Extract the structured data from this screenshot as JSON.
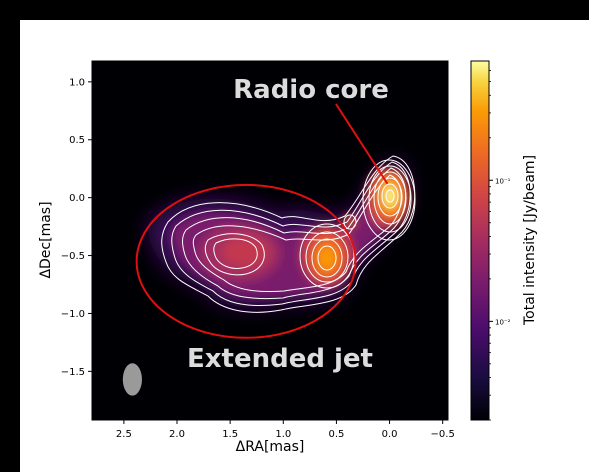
{
  "chart_data": {
    "type": "heatmap",
    "xlabel": "ΔRA[mas]",
    "ylabel": "ΔDec[mas]",
    "xlim": [
      2.8,
      -0.55
    ],
    "ylim": [
      -1.92,
      1.18
    ],
    "xticks": [
      2.5,
      2.0,
      1.5,
      1.0,
      0.5,
      0.0,
      -0.5
    ],
    "xtick_labels": [
      "2.5",
      "2.0",
      "1.5",
      "1.0",
      "0.5",
      "0.0",
      "−0.5"
    ],
    "yticks": [
      1.0,
      0.5,
      0.0,
      -0.5,
      -1.0,
      -1.5
    ],
    "ytick_labels": [
      "1.0",
      "0.5",
      "0.0",
      "−0.5",
      "−1.0",
      "−1.5"
    ],
    "colorbar": {
      "label": "Total intensity [Jy/beam]",
      "scale": "log",
      "range": [
        0.002,
        0.7
      ],
      "ticks": [
        0.1,
        0.01
      ],
      "tick_labels": [
        "10⁻¹",
        "10⁻²"
      ],
      "colormap": "inferno"
    },
    "components": [
      {
        "name": "core",
        "x": 0.0,
        "y": 0.0,
        "peak": 0.6
      },
      {
        "name": "knot",
        "x": 0.6,
        "y": -0.52,
        "peak": 0.18
      },
      {
        "name": "knot_small",
        "x": 0.38,
        "y": -0.22,
        "peak": 0.05
      },
      {
        "name": "jet_blob",
        "x": 1.35,
        "y": -0.5,
        "peak": 0.03
      }
    ],
    "annotations": [
      {
        "text": "Radio core",
        "points_to": {
          "x": 0.02,
          "y": 0.12
        }
      },
      {
        "text": "Extended jet"
      }
    ],
    "ellipse": {
      "cx": 1.35,
      "cy": -0.55,
      "rx": 1.03,
      "ry": 0.66,
      "color": "#e01010"
    },
    "beam": {
      "x": 2.42,
      "y": -1.57,
      "major": 0.28,
      "minor": 0.18,
      "color": "#9a9a9a"
    },
    "colors": {
      "background": "#000004",
      "contour": "#ffffff",
      "annotation_text": "#dcdcdc",
      "arrow": "#e01010"
    }
  }
}
